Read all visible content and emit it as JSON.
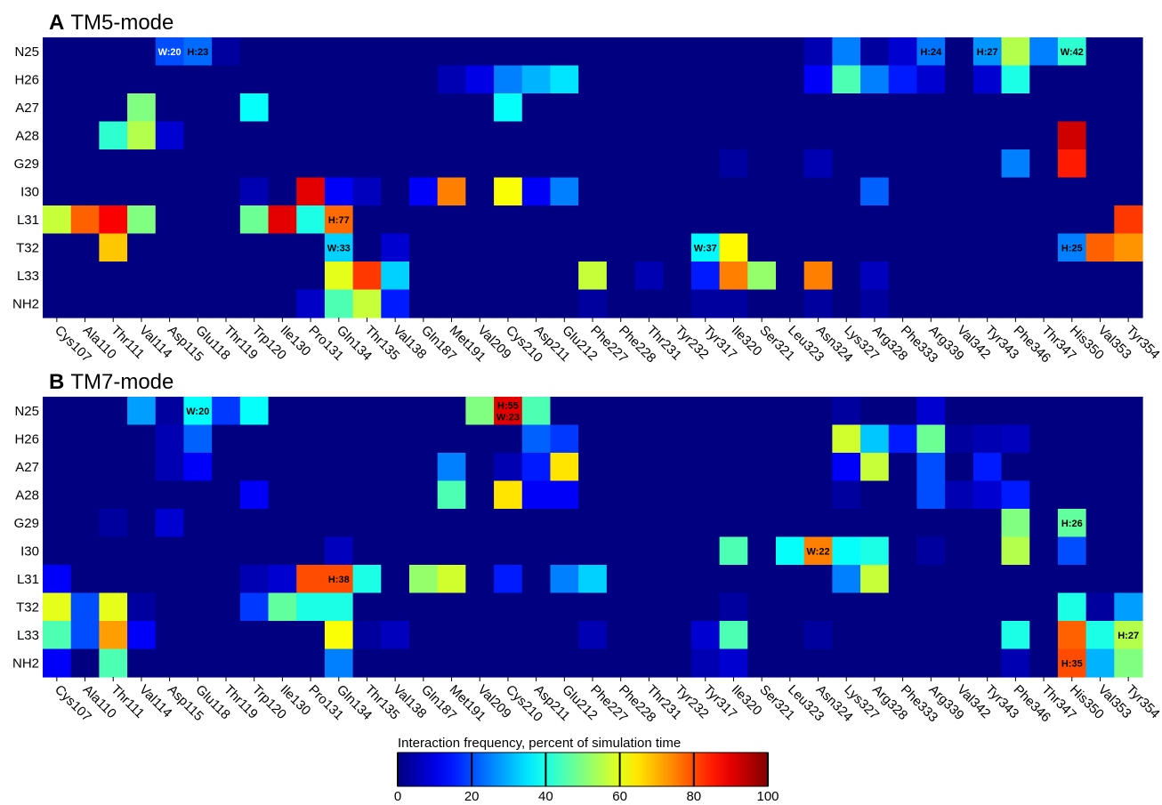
{
  "chart_data": [
    {
      "type": "heatmap",
      "letter": "A",
      "title": "TM5-mode",
      "rows": [
        "N25",
        "H26",
        "A27",
        "A28",
        "G29",
        "I30",
        "L31",
        "T32",
        "L33",
        "NH2"
      ],
      "columns": [
        "Cys107",
        "Ala110",
        "Thr111",
        "Val114",
        "Asp115",
        "Glu118",
        "Thr119",
        "Trp120",
        "Ile130",
        "Pro131",
        "Gln134",
        "Thr135",
        "Val138",
        "Gln187",
        "Met191",
        "Val209",
        "Cys210",
        "Asp211",
        "Glu212",
        "Phe227",
        "Phe228",
        "Thr231",
        "Tyr232",
        "Tyr317",
        "Ile320",
        "Ser321",
        "Leu323",
        "Asn324",
        "Lys327",
        "Arg328",
        "Phe333",
        "Arg339",
        "Val342",
        "Tyr343",
        "Phe346",
        "Thr347",
        "His350",
        "Val353",
        "Tyr354"
      ],
      "values": [
        [
          0,
          0,
          0,
          0,
          20,
          23,
          3,
          0,
          0,
          0,
          0,
          0,
          0,
          0,
          0,
          0,
          0,
          0,
          0,
          0,
          0,
          0,
          0,
          0,
          0,
          0,
          0,
          5,
          25,
          3,
          8,
          24,
          0,
          27,
          55,
          25,
          42,
          0,
          0
        ],
        [
          0,
          0,
          0,
          0,
          0,
          0,
          0,
          0,
          0,
          0,
          0,
          0,
          0,
          0,
          5,
          10,
          25,
          30,
          35,
          0,
          0,
          0,
          0,
          0,
          0,
          0,
          0,
          12,
          45,
          25,
          15,
          8,
          0,
          8,
          40,
          0,
          0,
          0,
          0
        ],
        [
          0,
          0,
          0,
          50,
          0,
          0,
          0,
          38,
          0,
          0,
          0,
          0,
          0,
          0,
          0,
          0,
          38,
          0,
          0,
          0,
          0,
          0,
          0,
          0,
          0,
          0,
          0,
          0,
          0,
          0,
          0,
          0,
          0,
          0,
          0,
          0,
          0,
          0,
          0
        ],
        [
          0,
          0,
          42,
          55,
          8,
          0,
          0,
          0,
          0,
          0,
          0,
          0,
          0,
          0,
          0,
          0,
          0,
          0,
          0,
          0,
          0,
          0,
          0,
          0,
          0,
          0,
          0,
          0,
          0,
          0,
          0,
          0,
          0,
          0,
          0,
          0,
          92,
          0,
          0
        ],
        [
          0,
          0,
          0,
          0,
          0,
          0,
          0,
          0,
          0,
          0,
          0,
          0,
          0,
          0,
          0,
          0,
          0,
          0,
          0,
          0,
          0,
          0,
          0,
          0,
          3,
          0,
          0,
          5,
          0,
          0,
          0,
          0,
          0,
          0,
          25,
          0,
          85,
          0,
          0
        ],
        [
          0,
          0,
          0,
          0,
          0,
          0,
          0,
          5,
          0,
          90,
          12,
          6,
          0,
          12,
          75,
          0,
          62,
          12,
          25,
          0,
          0,
          0,
          0,
          0,
          0,
          0,
          0,
          0,
          0,
          22,
          0,
          0,
          0,
          0,
          0,
          0,
          0,
          0,
          0
        ],
        [
          57,
          78,
          88,
          50,
          0,
          0,
          0,
          48,
          90,
          40,
          77,
          0,
          0,
          0,
          0,
          0,
          0,
          0,
          0,
          0,
          0,
          0,
          0,
          0,
          0,
          0,
          0,
          0,
          0,
          0,
          0,
          0,
          0,
          0,
          0,
          0,
          0,
          0,
          82
        ],
        [
          0,
          0,
          68,
          0,
          0,
          0,
          0,
          0,
          0,
          0,
          33,
          0,
          8,
          0,
          0,
          0,
          0,
          0,
          0,
          0,
          0,
          0,
          0,
          37,
          63,
          0,
          0,
          0,
          0,
          0,
          0,
          0,
          0,
          0,
          0,
          0,
          25,
          78,
          73
        ],
        [
          0,
          0,
          0,
          0,
          0,
          0,
          0,
          0,
          0,
          0,
          60,
          82,
          33,
          0,
          0,
          0,
          0,
          0,
          0,
          57,
          0,
          5,
          0,
          15,
          75,
          52,
          0,
          75,
          0,
          6,
          0,
          0,
          0,
          0,
          0,
          0,
          0,
          0,
          0
        ],
        [
          0,
          0,
          0,
          0,
          0,
          0,
          0,
          0,
          0,
          7,
          45,
          57,
          15,
          0,
          0,
          0,
          0,
          0,
          0,
          3,
          0,
          0,
          0,
          3,
          3,
          0,
          0,
          3,
          0,
          3,
          0,
          0,
          0,
          0,
          0,
          0,
          0,
          0,
          0
        ]
      ],
      "annotations": [
        {
          "row": "N25",
          "col": "Asp115",
          "text": "W:20"
        },
        {
          "row": "N25",
          "col": "Glu118",
          "text": "H:23"
        },
        {
          "row": "N25",
          "col": "Arg339",
          "text": "H:24"
        },
        {
          "row": "N25",
          "col": "Tyr343",
          "text": "H:27"
        },
        {
          "row": "N25",
          "col": "His350",
          "text": "W:42"
        },
        {
          "row": "L31",
          "col": "Gln134",
          "text": "H:77"
        },
        {
          "row": "T32",
          "col": "Gln134",
          "text": "W:33"
        },
        {
          "row": "T32",
          "col": "Tyr317",
          "text": "W:37"
        },
        {
          "row": "T32",
          "col": "His350",
          "text": "H:25"
        }
      ]
    },
    {
      "type": "heatmap",
      "letter": "B",
      "title": "TM7-mode",
      "rows": [
        "N25",
        "H26",
        "A27",
        "A28",
        "G29",
        "I30",
        "L31",
        "T32",
        "L33",
        "NH2"
      ],
      "columns": [
        "Cys107",
        "Ala110",
        "Thr111",
        "Val114",
        "Asp115",
        "Glu118",
        "Thr119",
        "Trp120",
        "Ile130",
        "Pro131",
        "Gln134",
        "Thr135",
        "Val138",
        "Gln187",
        "Met191",
        "Val209",
        "Cys210",
        "Asp211",
        "Glu212",
        "Phe227",
        "Phe228",
        "Thr231",
        "Tyr232",
        "Tyr317",
        "Ile320",
        "Ser321",
        "Leu323",
        "Asn324",
        "Lys327",
        "Arg328",
        "Phe333",
        "Arg339",
        "Val342",
        "Tyr343",
        "Phe346",
        "Thr347",
        "His350",
        "Val353",
        "Tyr354"
      ],
      "values": [
        [
          0,
          0,
          0,
          28,
          3,
          38,
          18,
          38,
          0,
          0,
          0,
          0,
          0,
          0,
          0,
          50,
          90,
          45,
          0,
          0,
          0,
          0,
          0,
          0,
          0,
          0,
          0,
          0,
          3,
          0,
          0,
          8,
          0,
          0,
          0,
          0,
          0,
          0,
          0
        ],
        [
          0,
          0,
          0,
          0,
          5,
          22,
          0,
          0,
          0,
          0,
          0,
          0,
          0,
          0,
          0,
          0,
          0,
          22,
          18,
          0,
          0,
          0,
          0,
          0,
          0,
          0,
          0,
          0,
          58,
          32,
          15,
          48,
          3,
          5,
          6,
          0,
          0,
          0,
          0
        ],
        [
          0,
          0,
          0,
          0,
          5,
          12,
          0,
          0,
          0,
          0,
          0,
          0,
          0,
          0,
          25,
          0,
          5,
          15,
          65,
          0,
          0,
          0,
          0,
          0,
          0,
          0,
          0,
          0,
          12,
          57,
          0,
          20,
          0,
          15,
          0,
          0,
          0,
          0,
          0
        ],
        [
          0,
          0,
          0,
          0,
          0,
          0,
          0,
          12,
          0,
          0,
          0,
          0,
          0,
          0,
          45,
          0,
          65,
          12,
          12,
          0,
          0,
          0,
          0,
          0,
          0,
          0,
          0,
          0,
          3,
          0,
          0,
          20,
          5,
          8,
          15,
          0,
          0,
          0,
          0
        ],
        [
          0,
          0,
          3,
          0,
          8,
          0,
          0,
          0,
          0,
          0,
          0,
          0,
          0,
          0,
          0,
          0,
          0,
          0,
          0,
          0,
          0,
          0,
          0,
          0,
          0,
          0,
          0,
          0,
          0,
          0,
          0,
          0,
          0,
          0,
          50,
          0,
          47,
          0,
          0
        ],
        [
          0,
          0,
          0,
          0,
          0,
          0,
          0,
          0,
          0,
          0,
          6,
          0,
          0,
          0,
          0,
          0,
          0,
          0,
          0,
          0,
          0,
          0,
          0,
          0,
          45,
          0,
          38,
          75,
          38,
          40,
          0,
          3,
          0,
          0,
          55,
          0,
          20,
          0,
          0
        ],
        [
          12,
          0,
          0,
          0,
          0,
          0,
          0,
          5,
          8,
          80,
          80,
          40,
          0,
          52,
          58,
          0,
          15,
          0,
          25,
          33,
          0,
          0,
          0,
          0,
          0,
          0,
          0,
          0,
          25,
          57,
          0,
          0,
          0,
          0,
          0,
          0,
          0,
          0,
          0
        ],
        [
          60,
          20,
          60,
          3,
          0,
          0,
          0,
          18,
          47,
          40,
          40,
          0,
          0,
          0,
          0,
          0,
          0,
          0,
          0,
          0,
          0,
          0,
          0,
          0,
          3,
          0,
          0,
          0,
          0,
          0,
          0,
          0,
          0,
          0,
          0,
          0,
          40,
          3,
          28
        ],
        [
          45,
          20,
          72,
          12,
          0,
          0,
          0,
          0,
          0,
          0,
          62,
          3,
          6,
          0,
          0,
          0,
          0,
          0,
          0,
          5,
          0,
          0,
          0,
          8,
          45,
          0,
          0,
          3,
          0,
          0,
          0,
          0,
          0,
          0,
          40,
          0,
          78,
          40,
          55
        ],
        [
          12,
          0,
          45,
          0,
          0,
          0,
          0,
          0,
          0,
          0,
          25,
          0,
          0,
          0,
          0,
          0,
          0,
          0,
          0,
          0,
          0,
          0,
          0,
          5,
          8,
          0,
          0,
          0,
          0,
          0,
          0,
          0,
          0,
          0,
          5,
          0,
          80,
          30,
          50
        ]
      ],
      "annotations": [
        {
          "row": "N25",
          "col": "Glu118",
          "text": "W:20"
        },
        {
          "row": "N25",
          "col": "Cys210",
          "text": "H:55\nW:23"
        },
        {
          "row": "L31",
          "col": "Gln134",
          "text": "H:38"
        },
        {
          "row": "I30",
          "col": "Asn324",
          "text": "W:22"
        },
        {
          "row": "G29",
          "col": "His350",
          "text": "H:26"
        },
        {
          "row": "NH2",
          "col": "His350",
          "text": "H:35"
        },
        {
          "row": "L33",
          "col": "Tyr354",
          "text": "H:27"
        }
      ]
    }
  ],
  "colorbar": {
    "label": "Interaction frequency, percent of simulation time",
    "ticks": [
      0,
      20,
      40,
      60,
      80,
      100
    ],
    "colormap": "jet"
  }
}
